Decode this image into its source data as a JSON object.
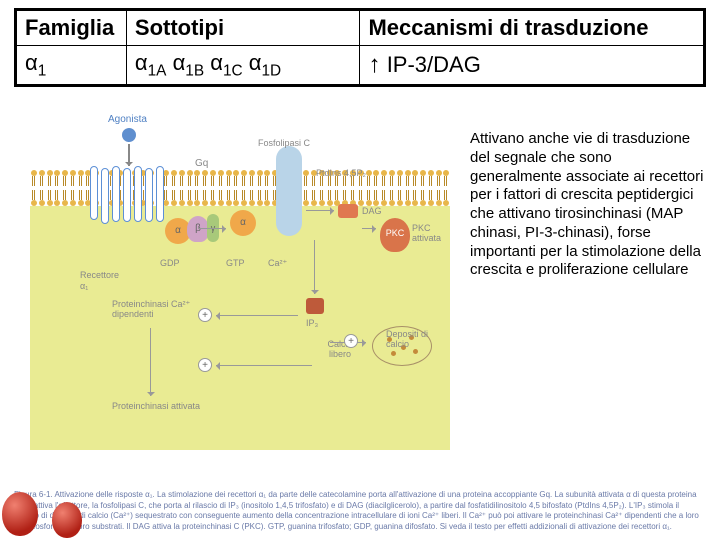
{
  "table": {
    "headers": {
      "famiglia": "Famiglia",
      "sottotipi": "Sottotipi",
      "meccanismi": "Meccanismi di trasduzione"
    },
    "row": {
      "famiglia_sym": "α",
      "famiglia_sub": "1",
      "s_sym": "α",
      "s1": "1A",
      "s2": "1B",
      "s3": "1C",
      "s4": "1D",
      "mec_arrow": "↑",
      "mec_text": " IP-3/DAG"
    },
    "header_fontsize": 22,
    "cell_fontsize": 22,
    "border_color": "#000000",
    "text_color": "#000000"
  },
  "diagram": {
    "labels": {
      "agonista": "Agonista",
      "gq": "Gq",
      "fosfolipasi": "Fosfolipasi C",
      "pip2": "PtdIns 4,5P₂",
      "dag": "DAG",
      "ip3": "IP₃",
      "pkc": "PKC",
      "pkc_attivata": "PKC attivata",
      "recettore": "Recettore",
      "recettore_sub": "α₁",
      "gdp": "GDP",
      "gtp": "GTP",
      "ca": "Ca²⁺",
      "pk_ca": "Proteinchinasi Ca²⁺ dipendenti",
      "calcio_libero": "Calcio libero",
      "depositi": "Depositi di calcio",
      "pk_attivata": "Proteinchinasi attivata",
      "alpha": "α",
      "beta": "β",
      "gamma": "γ",
      "plus": "+"
    },
    "colors": {
      "membrane_head": "#e8b64a",
      "membrane_tail": "#b88a2a",
      "cytosol": "#e9eb93",
      "agonist": "#5f8fcf",
      "receptor_stroke": "#5c8fd6",
      "g_alpha": "#f0a84a",
      "g_beta": "#cfa4c7",
      "g_gamma": "#a8c97a",
      "plc": "#b9d4e8",
      "dag": "#e07850",
      "ip3": "#be5a3a",
      "pkc": "#d9744a",
      "store_border": "#a89068",
      "ca_dot": "#c48a3a",
      "arrow": "#999999",
      "label": "#888888"
    }
  },
  "side_text": {
    "content": "Attivano anche vie di trasduzione del segnale che sono generalmente associate ai recettori per i fattori di crescita peptidergici che attivano tirosinchinasi (MAP chinasi, PI-3-chinasi), forse importanti per la stimolazione della crescita e proliferazione cellulare",
    "fontsize": 15,
    "font_family": "Comic Sans MS",
    "color": "#000000"
  },
  "caption": {
    "line1": "Figura 6-1. Attivazione delle risposte α₁. La stimolazione dei recettori α₁ da parte delle catecolamine porta all'attivazione di una proteina accoppiante Gq. La subunità attivata α di questa proteina (αq*) attiva l'effettore, la fosfolipasi C, che porta al rilascio di IP₃ (inositolo 1,4,5 trifosfato) e di DAG (diacilglicerolo), a partire dal fosfatidilinositolo 4,5 bifosfato (PtdIns 4,5P₂). L'IP₃ stimola il rilascio di depositi di calcio (Ca²⁺) sequestrato con conseguente aumento della concentrazione intracellulare di ioni Ca²⁺ liberi. Il Ca²⁺ può poi attivare le proteinchinasi Ca²⁺ dipendenti che a loro volta fosforilano i loro substrati. Il DAG attiva la proteinchinasi C (PKC). GTP, guanina trifosfato; GDP, guanina difosfato. Si veda il testo per effetti addizionali di attivazione dei recettori α₁.",
    "fontsize": 8,
    "color": "#6a7aa8"
  }
}
